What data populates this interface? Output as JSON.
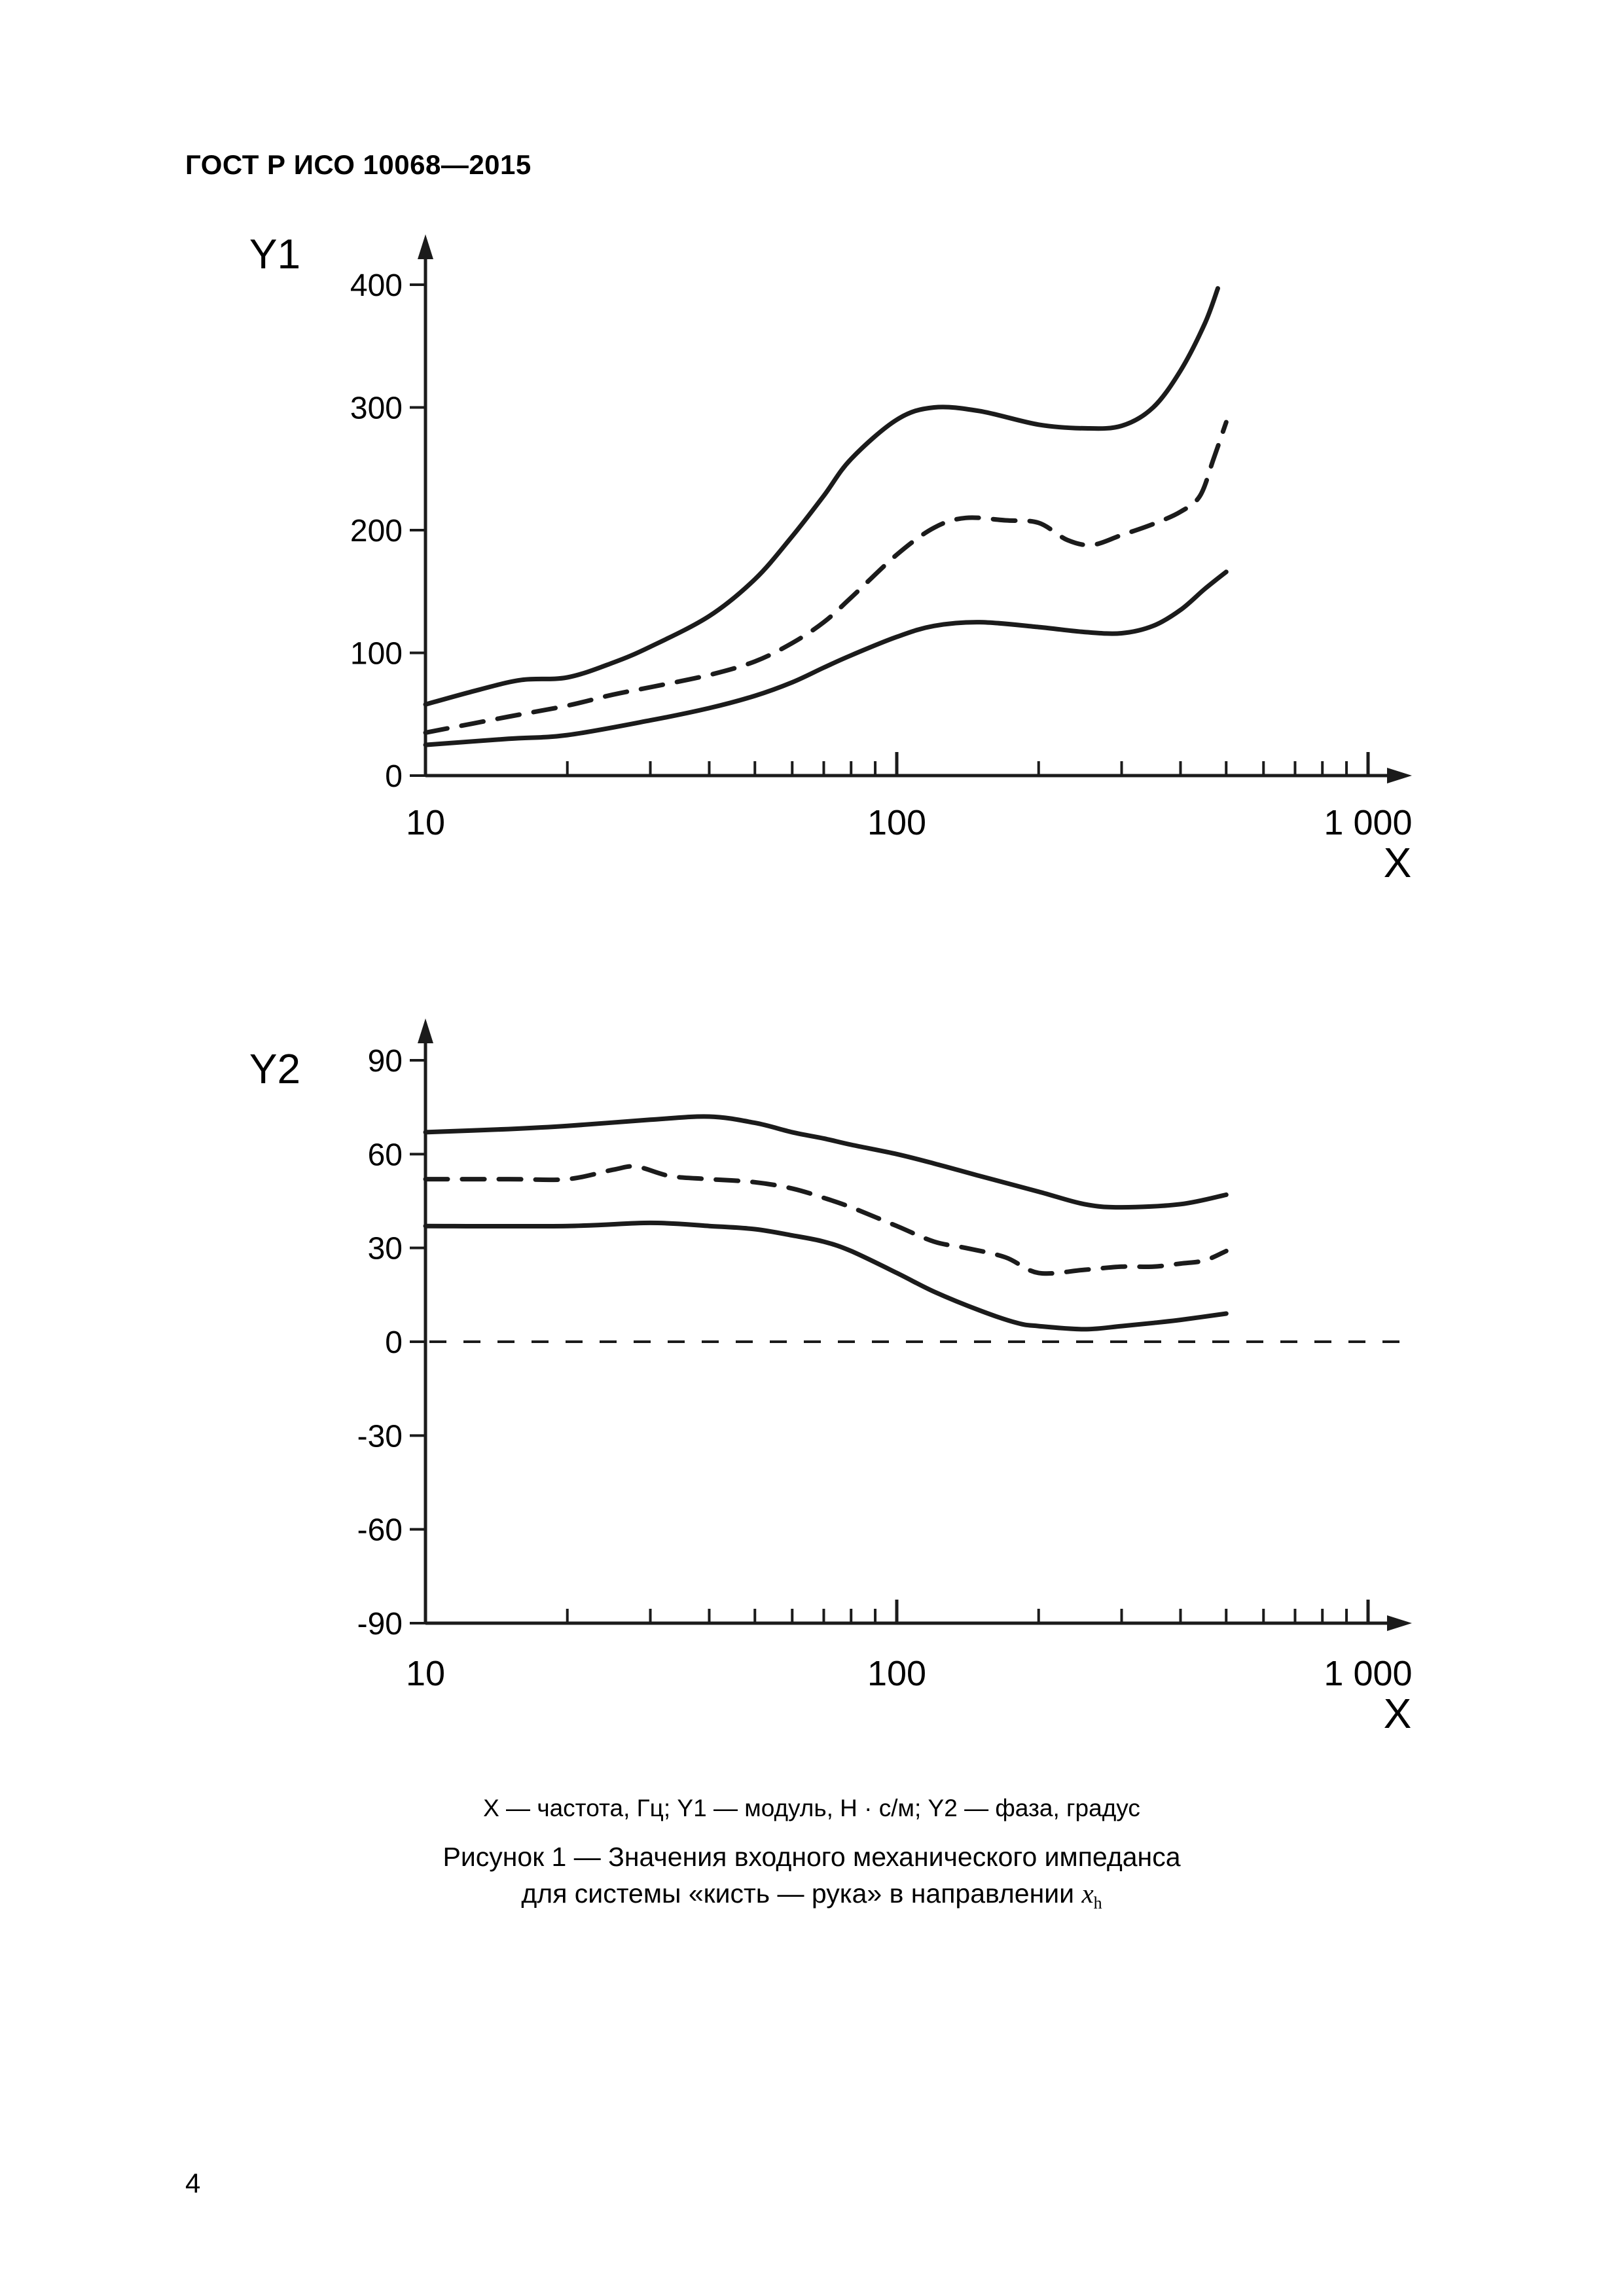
{
  "page": {
    "header": "ГОСТ Р ИСО 10068—2015",
    "page_number": "4",
    "legend": "X — частота, Гц; Y1 — модуль, Н · с/м; Y2 — фаза, градус",
    "figure_caption_line1": "Рисунок 1 — Значения входного механического импеданса",
    "figure_caption_line2_text": "для системы «кисть — рука» в направлении ",
    "figure_caption_var": "x",
    "figure_caption_var_sub": "h"
  },
  "chart_data": [
    {
      "type": "line",
      "name": "input-mechanical-impedance-modulus",
      "title": "",
      "xlabel": "X",
      "ylabel": "Y1",
      "x_scale": "log",
      "xlim": [
        10,
        1000
      ],
      "ylim": [
        0,
        400
      ],
      "grid": false,
      "x_ticks_major": [
        10,
        100,
        1000
      ],
      "x_tick_labels": [
        "10",
        "100",
        "1 000"
      ],
      "y_ticks": [
        0,
        100,
        200,
        300,
        400
      ],
      "series": [
        {
          "name": "upper-envelope",
          "style": "solid",
          "x": [
            10,
            13,
            16,
            20,
            25,
            30,
            40,
            50,
            60,
            70,
            80,
            100,
            120,
            150,
            200,
            250,
            300,
            350,
            400,
            450,
            480
          ],
          "y": [
            58,
            70,
            78,
            80,
            92,
            105,
            130,
            160,
            195,
            228,
            258,
            290,
            300,
            297,
            286,
            283,
            285,
            300,
            330,
            368,
            397
          ]
        },
        {
          "name": "mean",
          "style": "dashed",
          "x": [
            10,
            15,
            20,
            25,
            30,
            40,
            50,
            60,
            70,
            80,
            100,
            120,
            140,
            170,
            200,
            230,
            260,
            300,
            350,
            400,
            440,
            470,
            500
          ],
          "y": [
            35,
            48,
            57,
            66,
            72,
            82,
            93,
            108,
            125,
            145,
            180,
            202,
            210,
            208,
            206,
            192,
            188,
            196,
            205,
            215,
            228,
            258,
            288
          ]
        },
        {
          "name": "lower-envelope",
          "style": "solid",
          "x": [
            10,
            15,
            20,
            30,
            40,
            50,
            60,
            70,
            80,
            100,
            120,
            150,
            200,
            250,
            300,
            350,
            400,
            450,
            500
          ],
          "y": [
            25,
            30,
            33,
            45,
            55,
            65,
            76,
            88,
            98,
            113,
            122,
            125,
            121,
            117,
            116,
            122,
            135,
            152,
            166
          ]
        }
      ]
    },
    {
      "type": "line",
      "name": "input-mechanical-impedance-phase",
      "title": "",
      "xlabel": "X",
      "ylabel": "Y2",
      "x_scale": "log",
      "xlim": [
        10,
        1000
      ],
      "ylim": [
        -90,
        90
      ],
      "grid": false,
      "zero_line_dashed": true,
      "x_ticks_major": [
        10,
        100,
        1000
      ],
      "x_tick_labels": [
        "10",
        "100",
        "1 000"
      ],
      "y_ticks": [
        -90,
        -60,
        -30,
        0,
        30,
        60,
        90
      ],
      "series": [
        {
          "name": "upper-envelope",
          "style": "solid",
          "x": [
            10,
            15,
            20,
            30,
            40,
            50,
            60,
            70,
            80,
            100,
            120,
            150,
            200,
            250,
            300,
            400,
            500
          ],
          "y": [
            67,
            68,
            69,
            71,
            72,
            70,
            67,
            65,
            63,
            60,
            57,
            53,
            48,
            44,
            43,
            44,
            47
          ]
        },
        {
          "name": "mean",
          "style": "dashed",
          "x": [
            10,
            15,
            20,
            25,
            28,
            33,
            40,
            50,
            60,
            70,
            80,
            100,
            120,
            140,
            170,
            200,
            250,
            300,
            350,
            400,
            450,
            500
          ],
          "y": [
            52,
            52,
            52,
            55,
            56,
            53,
            52,
            51,
            49,
            46,
            43,
            37,
            32,
            30,
            27,
            22,
            23,
            24,
            24,
            25,
            26,
            29
          ]
        },
        {
          "name": "lower-envelope",
          "style": "solid",
          "x": [
            10,
            20,
            30,
            40,
            50,
            60,
            70,
            80,
            100,
            120,
            150,
            180,
            200,
            250,
            300,
            350,
            400,
            500
          ],
          "y": [
            37,
            37,
            38,
            37,
            36,
            34,
            32,
            29,
            22,
            16,
            10,
            6,
            5,
            4,
            5,
            6,
            7,
            9
          ]
        }
      ]
    }
  ]
}
